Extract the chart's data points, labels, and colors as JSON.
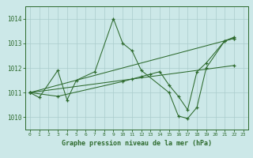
{
  "bg_color": "#cce8e8",
  "line_color": "#2d6a2d",
  "grid_color": "#aacccc",
  "xlim": [
    -0.5,
    23.5
  ],
  "ylim": [
    1009.5,
    1014.5
  ],
  "yticks": [
    1010,
    1011,
    1012,
    1013,
    1014
  ],
  "xticks": [
    0,
    1,
    2,
    3,
    4,
    5,
    6,
    7,
    8,
    9,
    10,
    11,
    12,
    13,
    14,
    15,
    16,
    17,
    18,
    19,
    20,
    21,
    22,
    23
  ],
  "xlabel": "Graphe pression niveau de la mer (hPa)",
  "lines": [
    {
      "x": [
        0,
        1,
        3,
        4,
        5,
        7,
        9,
        10,
        11,
        12,
        15,
        16,
        17,
        18,
        19,
        21,
        22
      ],
      "y": [
        1011.0,
        1010.8,
        1011.9,
        1010.7,
        1011.5,
        1011.85,
        1014.0,
        1013.0,
        1012.7,
        1011.9,
        1011.0,
        1010.05,
        1009.95,
        1010.4,
        1012.0,
        1013.1,
        1013.2
      ]
    },
    {
      "x": [
        0,
        3,
        10,
        11,
        12,
        13,
        14,
        15,
        16,
        17,
        18,
        19,
        21,
        22
      ],
      "y": [
        1011.0,
        1010.85,
        1011.45,
        1011.55,
        1011.65,
        1011.75,
        1011.85,
        1011.3,
        1010.85,
        1010.3,
        1011.85,
        1012.2,
        1013.1,
        1013.25
      ]
    },
    {
      "x": [
        0,
        22
      ],
      "y": [
        1011.0,
        1013.2
      ]
    },
    {
      "x": [
        0,
        22
      ],
      "y": [
        1011.0,
        1012.1
      ]
    }
  ]
}
